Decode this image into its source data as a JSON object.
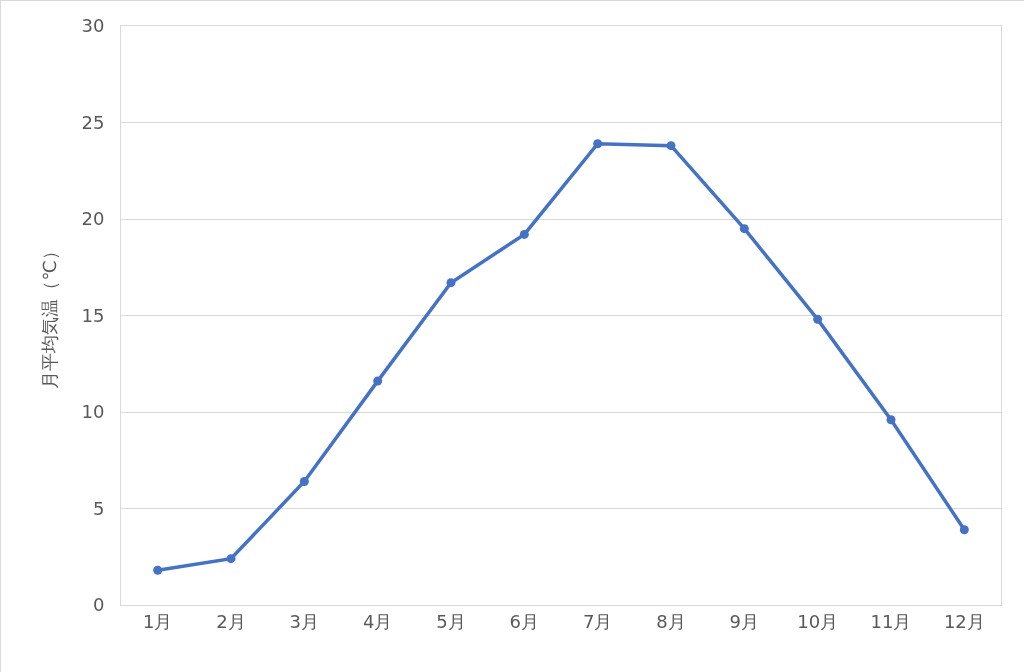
{
  "chart_data": {
    "type": "line",
    "ylabel": "月平均気温（℃）",
    "categories": [
      "1月",
      "2月",
      "3月",
      "4月",
      "5月",
      "6月",
      "7月",
      "8月",
      "9月",
      "10月",
      "11月",
      "12月"
    ],
    "series": [
      {
        "color": "#4472c4",
        "values": [
          1.8,
          2.4,
          6.4,
          11.6,
          16.7,
          19.2,
          23.9,
          23.8,
          19.5,
          14.8,
          9.6,
          3.9
        ]
      }
    ],
    "ylim": [
      0,
      30
    ],
    "yticks": [
      0,
      5,
      10,
      15,
      20,
      25,
      30
    ],
    "grid": "y",
    "marker": "circle",
    "line_style": "solid"
  }
}
